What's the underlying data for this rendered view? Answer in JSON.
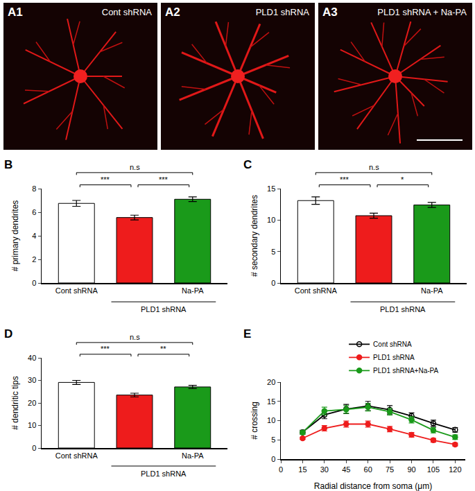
{
  "images": [
    {
      "panel_label": "A1",
      "caption": "Cont shRNA"
    },
    {
      "panel_label": "A2",
      "caption": "PLD1 shRNA"
    },
    {
      "panel_label": "A3",
      "caption": "PLD1 shRNA + Na-PA"
    }
  ],
  "chart_data": [
    {
      "panel_label": "B",
      "type": "bar",
      "categories": [
        "Cont shRNA",
        null,
        "Na-PA"
      ],
      "group_label": "PLD1 shRNA",
      "values": [
        6.75,
        5.55,
        7.1
      ],
      "errors": [
        0.25,
        0.2,
        0.2
      ],
      "colors": [
        "#ffffff",
        "#ee1c1c",
        "#1a9a1a"
      ],
      "y_label": "# primary dendrites",
      "ylim": [
        0,
        8
      ],
      "yticks": [
        0,
        2,
        4,
        6,
        8
      ],
      "comparisons": [
        {
          "pair": [
            0,
            2
          ],
          "label": "n.s"
        },
        {
          "pair": [
            0,
            1
          ],
          "label": "***"
        },
        {
          "pair": [
            1,
            2
          ],
          "label": "***"
        }
      ]
    },
    {
      "panel_label": "C",
      "type": "bar",
      "categories": [
        "Cont shRNA",
        null,
        "Na-PA"
      ],
      "group_label": "PLD1 shRNA",
      "values": [
        13.1,
        10.7,
        12.4
      ],
      "errors": [
        0.6,
        0.4,
        0.4
      ],
      "colors": [
        "#ffffff",
        "#ee1c1c",
        "#1a9a1a"
      ],
      "y_label": "# secondary dendrites",
      "ylim": [
        0,
        15
      ],
      "yticks": [
        0,
        5,
        10,
        15
      ],
      "comparisons": [
        {
          "pair": [
            0,
            2
          ],
          "label": "n.s"
        },
        {
          "pair": [
            0,
            1
          ],
          "label": "***"
        },
        {
          "pair": [
            1,
            2
          ],
          "label": "*"
        }
      ]
    },
    {
      "panel_label": "D",
      "type": "bar",
      "categories": [
        "Cont shRNA",
        null,
        "Na-PA"
      ],
      "group_label": "PLD1 shRNA",
      "values": [
        29.1,
        23.5,
        27.1
      ],
      "errors": [
        0.9,
        0.8,
        0.7
      ],
      "colors": [
        "#ffffff",
        "#ee1c1c",
        "#1a9a1a"
      ],
      "y_label": "# dendritic tips",
      "ylim": [
        0,
        40
      ],
      "yticks": [
        0,
        10,
        20,
        30,
        40
      ],
      "comparisons": [
        {
          "pair": [
            0,
            2
          ],
          "label": "n.s"
        },
        {
          "pair": [
            0,
            1
          ],
          "label": "***"
        },
        {
          "pair": [
            1,
            2
          ],
          "label": "**"
        }
      ]
    },
    {
      "panel_label": "E",
      "type": "line",
      "x": [
        15,
        30,
        45,
        60,
        75,
        90,
        105,
        120
      ],
      "series": [
        {
          "name": "Cont shRNA",
          "color": "#000000",
          "marker": "circle-open",
          "values": [
            7.0,
            11.5,
            13.0,
            13.8,
            12.8,
            11.2,
            9.3,
            7.6
          ],
          "errors": [
            0.5,
            1.0,
            1.2,
            1.2,
            1.1,
            0.8,
            0.8,
            0.6
          ]
        },
        {
          "name": "PLD1 shRNA",
          "color": "#ee1c1c",
          "marker": "circle",
          "values": [
            5.4,
            8.0,
            9.1,
            9.1,
            7.8,
            6.3,
            4.9,
            3.8
          ],
          "errors": [
            0.3,
            0.7,
            0.8,
            0.8,
            0.7,
            0.6,
            0.5,
            0.4
          ]
        },
        {
          "name": "PLD1 shRNA+Na-PA",
          "color": "#1a9a1a",
          "marker": "circle",
          "values": [
            6.9,
            12.5,
            12.9,
            13.5,
            12.3,
            10.2,
            7.5,
            5.7
          ],
          "errors": [
            0.5,
            1.0,
            1.0,
            1.0,
            0.9,
            0.8,
            0.7,
            0.6
          ]
        }
      ],
      "x_label": "Radial distance from soma (μm)",
      "y_label": "# crossing",
      "xlim": [
        0,
        127
      ],
      "xticks": [
        0,
        15,
        30,
        45,
        60,
        75,
        90,
        105,
        120
      ],
      "ylim": [
        0,
        20
      ],
      "yticks": [
        0,
        5,
        10,
        15,
        20
      ],
      "legend": "top"
    }
  ]
}
